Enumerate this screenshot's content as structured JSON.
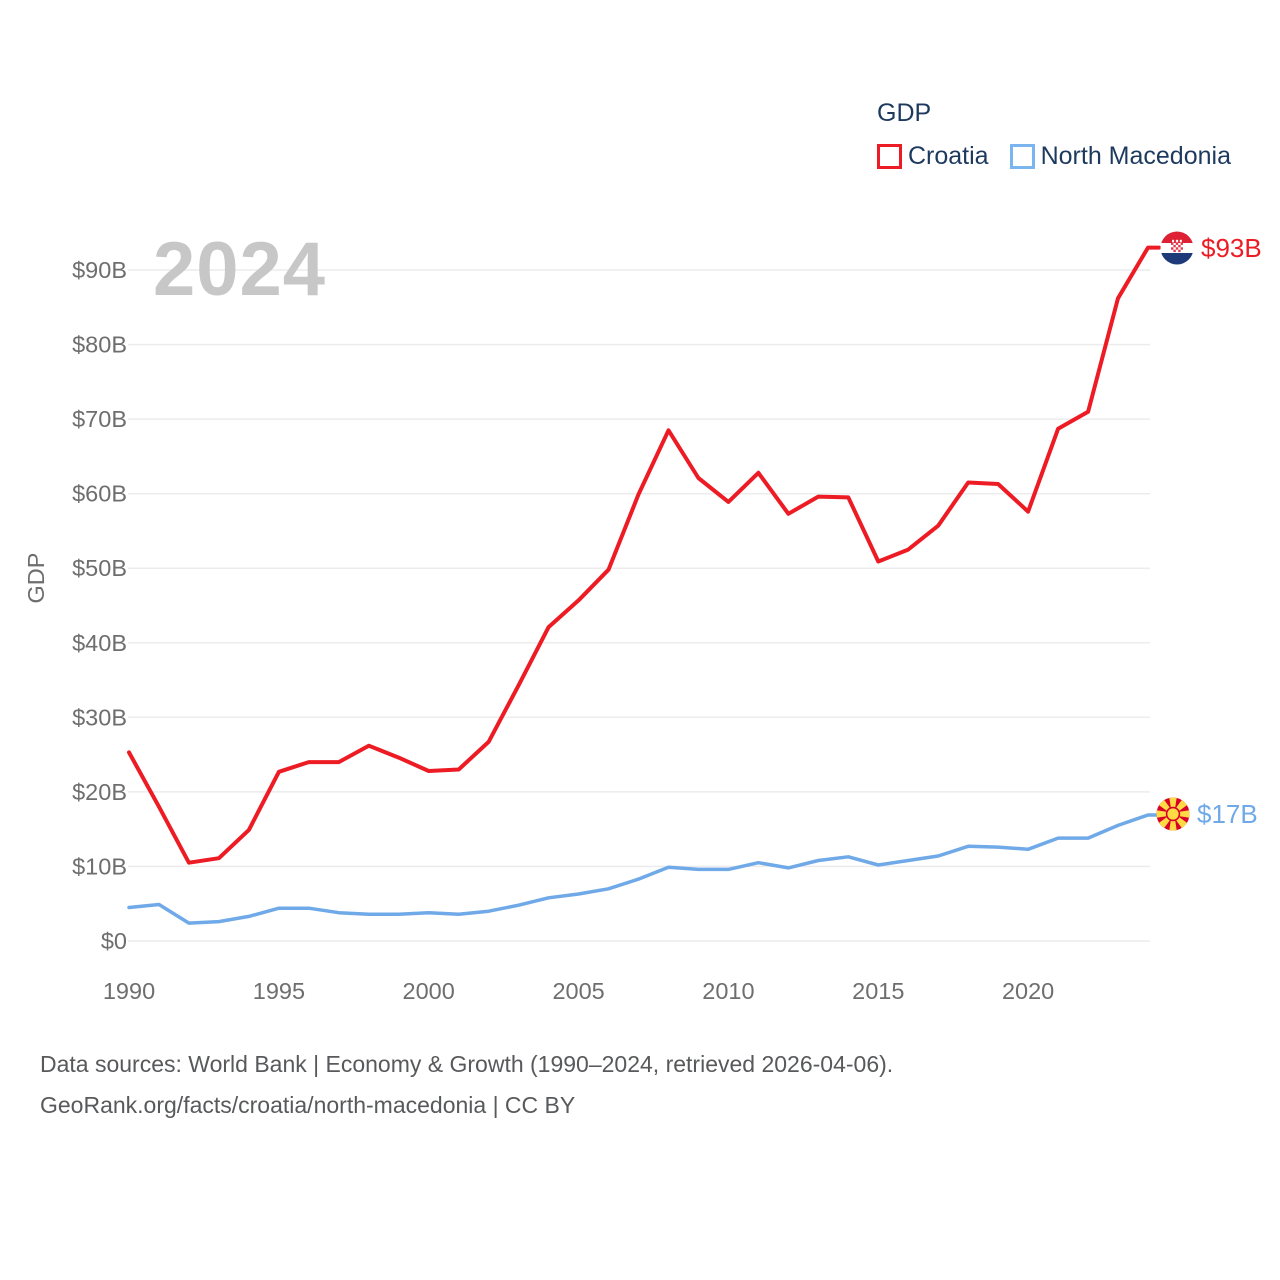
{
  "watermark": "2024",
  "legend": {
    "title": "GDP",
    "items": [
      {
        "label": "Croatia",
        "color": "#ed1c24"
      },
      {
        "label": "North Macedonia",
        "color": "#7ab5ef"
      }
    ]
  },
  "chart_data": {
    "type": "line",
    "title": "GDP",
    "ylabel": "GDP",
    "grid": "horizontal",
    "legend_position": "top-right",
    "ylim": [
      0,
      90
    ],
    "x": [
      1990,
      1991,
      1992,
      1993,
      1994,
      1995,
      1996,
      1997,
      1998,
      1999,
      2000,
      2001,
      2002,
      2003,
      2004,
      2005,
      2006,
      2007,
      2008,
      2009,
      2010,
      2011,
      2012,
      2013,
      2014,
      2015,
      2016,
      2017,
      2018,
      2019,
      2020,
      2021,
      2022,
      2023,
      2024
    ],
    "xticks": [
      1990,
      1995,
      2000,
      2005,
      2010,
      2015,
      2020
    ],
    "yticks": [
      {
        "label": "$0",
        "value": 0
      },
      {
        "label": "$10B",
        "value": 10
      },
      {
        "label": "$20B",
        "value": 20
      },
      {
        "label": "$30B",
        "value": 30
      },
      {
        "label": "$40B",
        "value": 40
      },
      {
        "label": "$50B",
        "value": 50
      },
      {
        "label": "$60B",
        "value": 60
      },
      {
        "label": "$70B",
        "value": 70
      },
      {
        "label": "$80B",
        "value": 80
      },
      {
        "label": "$90B",
        "value": 90
      }
    ],
    "series": [
      {
        "name": "Croatia",
        "color": "#ed1c24",
        "end_label": "$93B",
        "flag": "croatia-flag",
        "values": [
          25.3,
          18.0,
          10.5,
          11.1,
          14.9,
          22.7,
          24.0,
          24.0,
          26.2,
          24.6,
          22.8,
          23.0,
          26.7,
          34.3,
          42.1,
          45.7,
          49.8,
          59.9,
          68.5,
          62.1,
          58.9,
          62.8,
          57.3,
          59.6,
          59.5,
          50.9,
          52.5,
          55.7,
          61.5,
          61.3,
          57.6,
          68.7,
          71.0,
          86.2,
          93.0
        ]
      },
      {
        "name": "North Macedonia",
        "color": "#6fa9e8",
        "end_label": "$17B",
        "flag": "north-macedonia-flag",
        "values": [
          4.5,
          4.9,
          2.4,
          2.6,
          3.3,
          4.4,
          4.4,
          3.8,
          3.6,
          3.6,
          3.8,
          3.6,
          4.0,
          4.8,
          5.8,
          6.3,
          7.0,
          8.3,
          9.9,
          9.6,
          9.6,
          10.5,
          9.8,
          10.8,
          11.3,
          10.2,
          10.8,
          11.4,
          12.7,
          12.6,
          12.3,
          13.8,
          13.8,
          15.5,
          16.9
        ]
      }
    ]
  },
  "footer": {
    "line1": "Data sources: World Bank | Economy & Growth (1990–2024, retrieved 2026-04-06).",
    "line2": "GeoRank.org/facts/croatia/north-macedonia | CC BY"
  }
}
